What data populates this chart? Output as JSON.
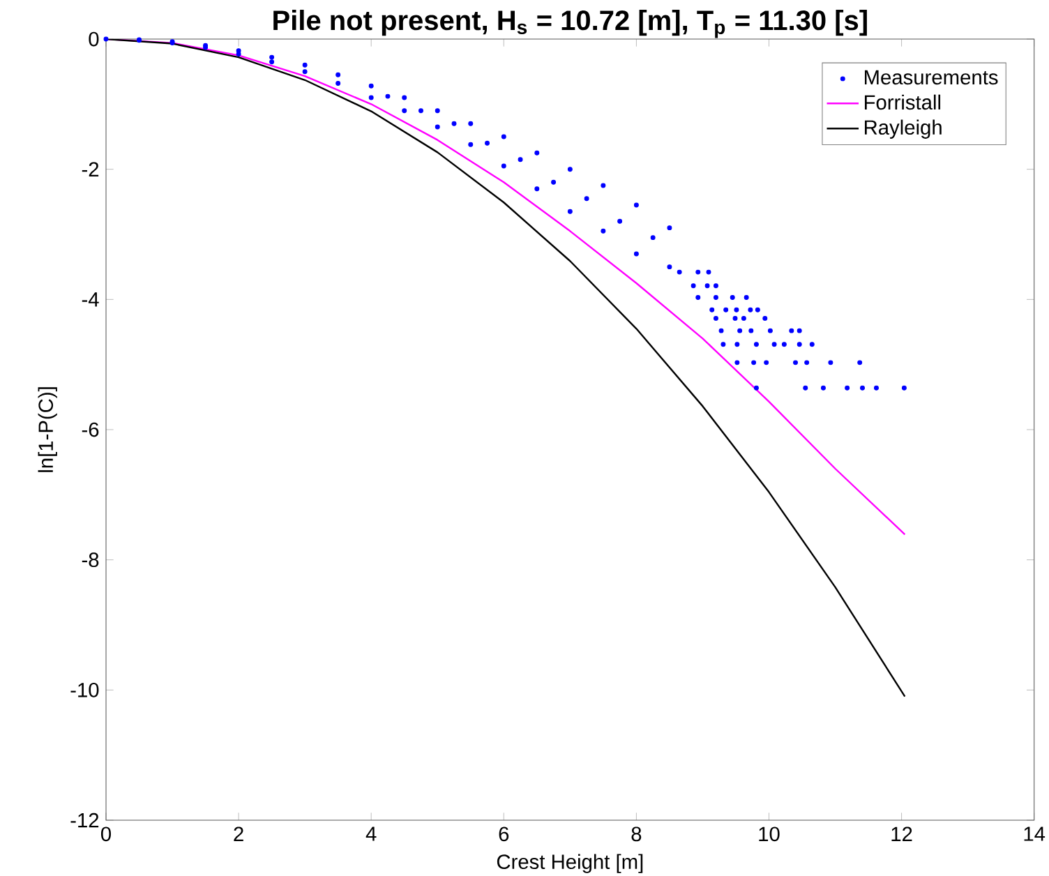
{
  "chart_data": {
    "type": "scatter",
    "title": "Pile not present, H$_{s}$ = 10.72 [m], T$_{p}$ = 11.30 [s]",
    "xlabel": "Crest Height [m]",
    "ylabel": "ln[1-P(C)]",
    "xlim": [
      0,
      14
    ],
    "ylim": [
      -12,
      0
    ],
    "xticks": [
      0,
      2,
      4,
      6,
      8,
      10,
      12,
      14
    ],
    "yticks": [
      -12,
      -10,
      -8,
      -6,
      -4,
      -2,
      0
    ],
    "grid": false,
    "legend": "top right",
    "series": [
      {
        "name": "Measurements",
        "marker": "circle",
        "color": "#0000ff",
        "x": [
          0,
          0.5,
          0.5,
          1,
          1,
          1.5,
          1.5,
          2,
          2,
          2.5,
          2.5,
          3,
          3,
          3.5,
          3.5,
          4,
          4,
          4.5,
          4.5,
          5,
          5,
          5.5,
          5.5,
          6,
          6,
          6.5,
          6.5,
          7,
          7,
          7.5,
          7.5,
          8,
          8,
          8.5,
          8.5,
          4.25,
          4.75,
          5.25,
          5.75,
          6.25,
          6.75,
          7.25,
          7.75,
          8.25,
          8.65,
          8.93,
          9.09,
          8.86,
          9.07,
          9.2,
          8.93,
          9.2,
          9.45,
          9.66,
          9.14,
          9.35,
          9.51,
          9.72,
          9.83,
          9.2,
          9.49,
          9.62,
          9.94,
          9.28,
          9.56,
          9.73,
          10.02,
          10.34,
          10.46,
          9.31,
          9.52,
          9.81,
          10.08,
          10.23,
          10.46,
          10.65,
          9.52,
          9.77,
          9.96,
          10.4,
          10.57,
          10.93,
          11.37,
          9.81,
          10.55,
          10.82,
          11.18,
          11.41,
          11.62,
          12.04
        ],
        "values": [
          0,
          -0.01,
          -0.02,
          -0.04,
          -0.06,
          -0.1,
          -0.13,
          -0.18,
          -0.23,
          -0.28,
          -0.35,
          -0.4,
          -0.5,
          -0.55,
          -0.68,
          -0.72,
          -0.9,
          -0.9,
          -1.1,
          -1.1,
          -1.35,
          -1.3,
          -1.62,
          -1.5,
          -1.95,
          -1.75,
          -2.3,
          -2.0,
          -2.65,
          -2.25,
          -2.95,
          -2.55,
          -3.3,
          -2.9,
          -3.5,
          -0.88,
          -1.1,
          -1.3,
          -1.6,
          -1.85,
          -2.2,
          -2.45,
          -2.8,
          -3.05,
          -3.58,
          -3.58,
          -3.58,
          -3.79,
          -3.79,
          -3.79,
          -3.97,
          -3.97,
          -3.97,
          -3.97,
          -4.16,
          -4.16,
          -4.16,
          -4.16,
          -4.16,
          -4.29,
          -4.29,
          -4.29,
          -4.29,
          -4.48,
          -4.48,
          -4.48,
          -4.48,
          -4.48,
          -4.48,
          -4.69,
          -4.69,
          -4.69,
          -4.69,
          -4.69,
          -4.69,
          -4.69,
          -4.97,
          -4.97,
          -4.97,
          -4.97,
          -4.97,
          -4.97,
          -4.97,
          -5.36,
          -5.36,
          -5.36,
          -5.36,
          -5.36,
          -5.36,
          -5.36
        ]
      },
      {
        "name": "Forristall",
        "type": "line",
        "marker": "none",
        "color": "#ff00ff",
        "x": [
          0,
          1,
          2,
          3,
          4,
          5,
          6,
          7,
          8,
          9,
          10,
          11,
          12.05
        ],
        "values": [
          0,
          -0.06,
          -0.25,
          -0.57,
          -1.0,
          -1.55,
          -2.2,
          -2.95,
          -3.75,
          -4.6,
          -5.57,
          -6.6,
          -7.61
        ]
      },
      {
        "name": "Rayleigh",
        "type": "line",
        "marker": "none",
        "color": "#000000",
        "x": [
          0,
          1,
          2,
          3,
          4,
          5,
          6,
          7,
          8,
          9,
          10,
          11,
          12.05
        ],
        "values": [
          0,
          -0.07,
          -0.28,
          -0.63,
          -1.11,
          -1.74,
          -2.51,
          -3.41,
          -4.45,
          -5.64,
          -6.96,
          -8.42,
          -10.1
        ]
      }
    ]
  }
}
